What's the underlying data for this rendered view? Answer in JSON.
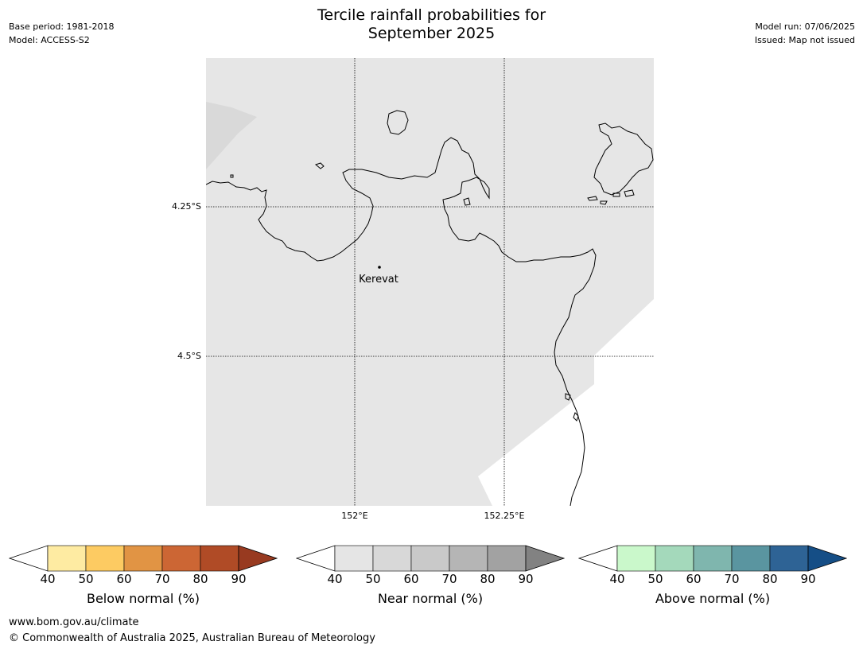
{
  "header": {
    "title_line1": "Tercile rainfall probabilities for",
    "title_line2": "September 2025",
    "base_period": "Base period: 1981-2018",
    "model": "Model: ACCESS-S2",
    "model_run": "Model run: 07/06/2025",
    "issued": "Issued: Map not issued"
  },
  "map": {
    "background_color": "#e6e6e6",
    "lat_labels": [
      "4.25°S",
      "4.5°S"
    ],
    "lon_labels": [
      "152°E",
      "152.25°E"
    ],
    "place": {
      "name": "Kerevat"
    }
  },
  "colorbars": [
    {
      "title": "Below normal (%)",
      "ticks": [
        "40",
        "50",
        "60",
        "70",
        "80",
        "90"
      ],
      "colors": [
        "#ffffff",
        "#feeba2",
        "#fdcb62",
        "#e19444",
        "#cc6634",
        "#b04b26",
        "#983a20"
      ]
    },
    {
      "title": "Near normal (%)",
      "ticks": [
        "40",
        "50",
        "60",
        "70",
        "80",
        "90"
      ],
      "colors": [
        "#ffffff",
        "#e5e5e5",
        "#d8d8d8",
        "#c9c9c9",
        "#b5b5b5",
        "#a2a2a2",
        "#828282"
      ]
    },
    {
      "title": "Above normal (%)",
      "ticks": [
        "40",
        "50",
        "60",
        "70",
        "80",
        "90"
      ],
      "colors": [
        "#ffffff",
        "#caf8cb",
        "#a4d9bb",
        "#7fb6ae",
        "#5a95a0",
        "#2e6395",
        "#154e86"
      ]
    }
  ],
  "footer": {
    "url": "www.bom.gov.au/climate",
    "copyright": "© Commonwealth of Australia 2025, Australian Bureau of Meteorology"
  }
}
